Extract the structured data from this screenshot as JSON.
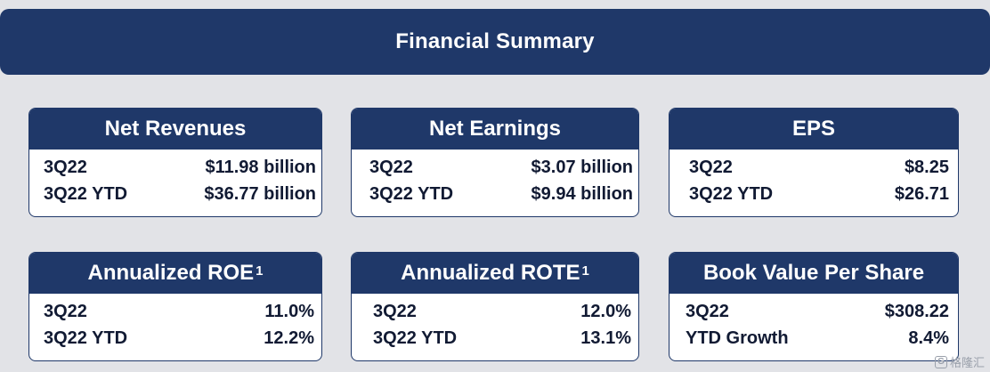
{
  "header": {
    "title": "Financial Summary"
  },
  "cards": [
    {
      "title": "Net Revenues",
      "footnote": "",
      "rows": [
        {
          "label": "3Q22",
          "value": "$11.98 billion"
        },
        {
          "label": "3Q22 YTD",
          "value": "$36.77 billion"
        }
      ]
    },
    {
      "title": "Net Earnings",
      "footnote": "",
      "rows": [
        {
          "label": "3Q22",
          "value": "$3.07 billion"
        },
        {
          "label": "3Q22 YTD",
          "value": "$9.94 billion"
        }
      ]
    },
    {
      "title": "EPS",
      "footnote": "",
      "rows": [
        {
          "label": "3Q22",
          "value": "$8.25"
        },
        {
          "label": "3Q22 YTD",
          "value": "$26.71"
        }
      ]
    },
    {
      "title": "Annualized ROE",
      "footnote": "1",
      "rows": [
        {
          "label": "3Q22",
          "value": "11.0%"
        },
        {
          "label": "3Q22 YTD",
          "value": "12.2%"
        }
      ]
    },
    {
      "title": "Annualized ROTE",
      "footnote": "1",
      "rows": [
        {
          "label": "3Q22",
          "value": "12.0%"
        },
        {
          "label": "3Q22 YTD",
          "value": "13.1%"
        }
      ]
    },
    {
      "title": "Book Value Per Share",
      "footnote": "",
      "rows": [
        {
          "label": "3Q22",
          "value": "$308.22"
        },
        {
          "label": "YTD Growth",
          "value": "8.4%"
        }
      ]
    }
  ],
  "watermark": {
    "icon": "G",
    "text": "格隆汇"
  }
}
